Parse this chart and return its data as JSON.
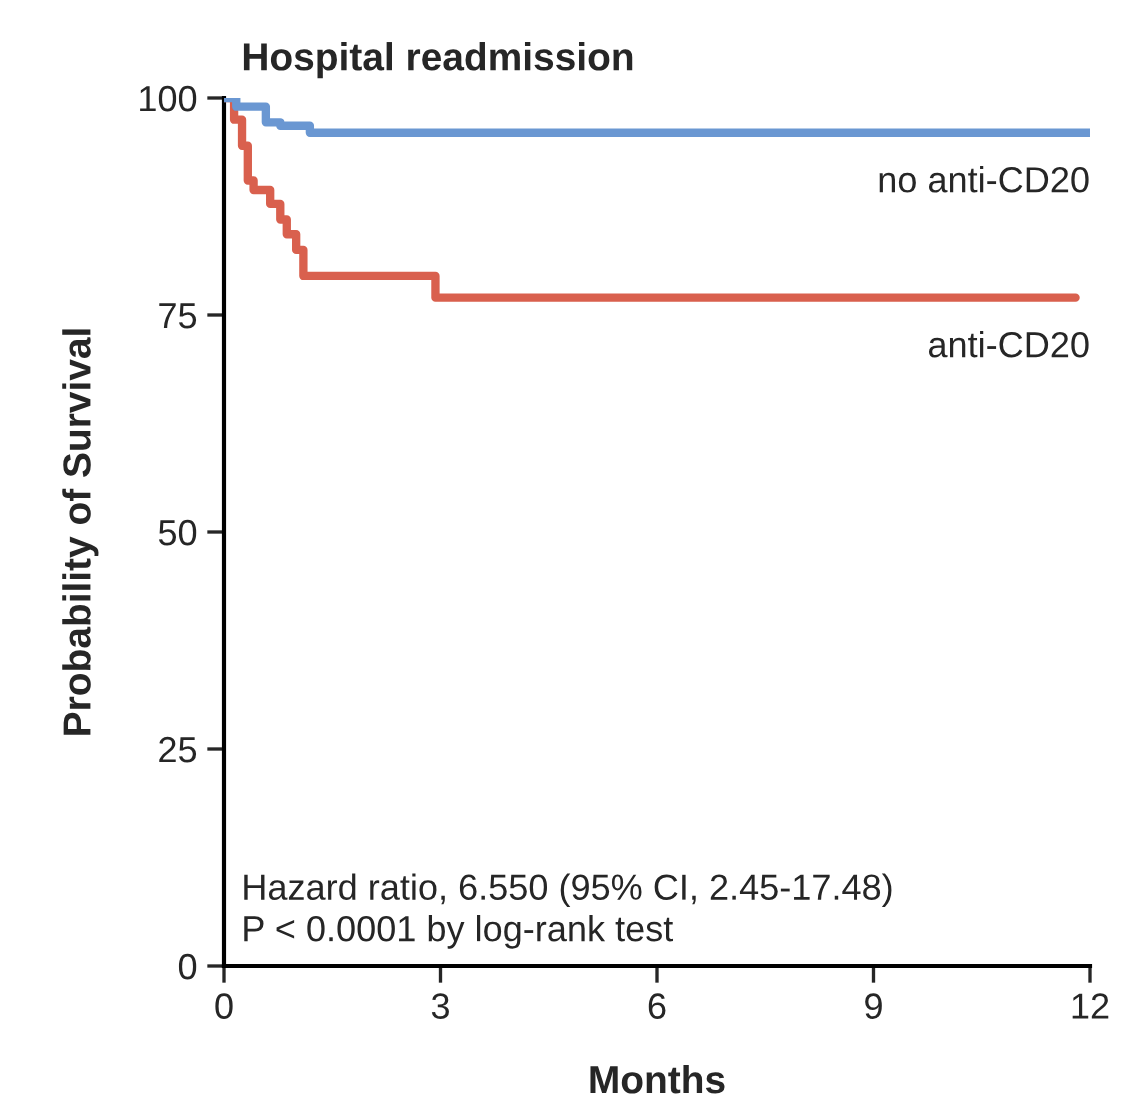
{
  "chart_data": {
    "type": "step",
    "title": "Hospital readmission",
    "xlabel": "Months",
    "ylabel": "Probability of Survival",
    "xlim": [
      0,
      12
    ],
    "ylim": [
      0,
      100
    ],
    "xticks": [
      0,
      3,
      6,
      9,
      12
    ],
    "yticks": [
      0,
      25,
      50,
      75,
      100
    ],
    "grid": false,
    "legend": false,
    "marker": "none",
    "line_style": "solid",
    "series": [
      {
        "name": "no anti-CD20",
        "color": "#6a97d2",
        "x": [
          0,
          0.17,
          0.58,
          0.78,
          1.19,
          12
        ],
        "values": [
          100,
          99,
          97.2,
          96.8,
          96,
          96
        ]
      },
      {
        "name": "anti-CD20",
        "color": "#d9604e",
        "x": [
          0,
          0.14,
          0.25,
          0.33,
          0.41,
          0.64,
          0.78,
          0.87,
          1.0,
          1.1,
          2.93,
          11.8
        ],
        "values": [
          100,
          97.5,
          94.5,
          90.5,
          89.4,
          87.8,
          86,
          84.3,
          82.5,
          79.5,
          77,
          77
        ]
      }
    ],
    "annotations": [
      "Hazard ratio, 6.550 (95% CI, 2.45-17.48)\nP < 0.0001 by log-rank test"
    ]
  }
}
